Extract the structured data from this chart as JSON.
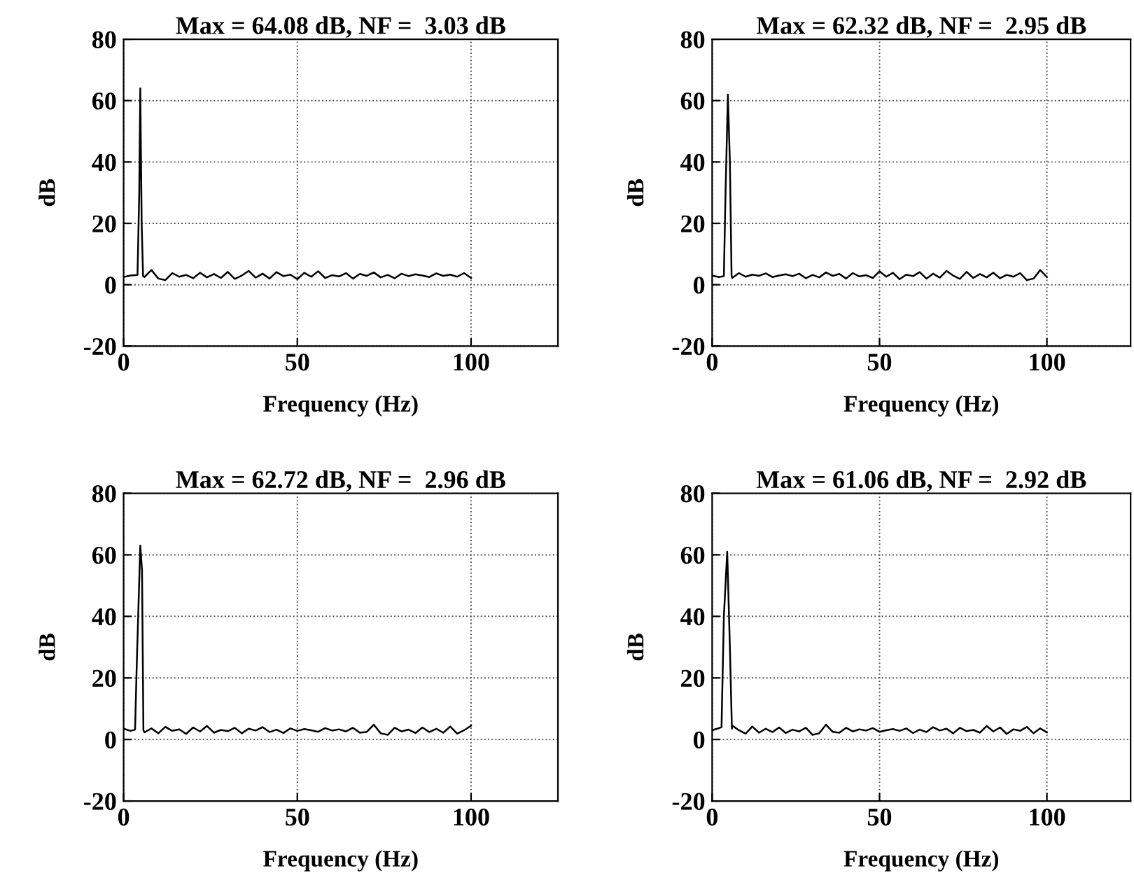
{
  "chart_data": [
    {
      "type": "line",
      "title": "Max = 64.08 dB, NF =  3.03 dB",
      "xlabel": "Frequency (Hz)",
      "ylabel": "dB",
      "xlim": [
        0,
        125
      ],
      "ylim": [
        -20,
        80
      ],
      "xticks": [
        0,
        50,
        100
      ],
      "yticks": [
        -20,
        0,
        20,
        40,
        60,
        80
      ],
      "grid": true,
      "series": [
        {
          "color": "#000000",
          "x": [
            0,
            2,
            4,
            4.5,
            4.8,
            5.2,
            5.6,
            6,
            8,
            10,
            12,
            14,
            16,
            18,
            20,
            22,
            24,
            26,
            28,
            30,
            32,
            34,
            36,
            38,
            40,
            42,
            44,
            46,
            48,
            50,
            52,
            54,
            56,
            58,
            60,
            62,
            64,
            66,
            68,
            70,
            72,
            74,
            76,
            78,
            80,
            82,
            84,
            86,
            88,
            90,
            92,
            94,
            96,
            98,
            100
          ],
          "values": [
            2.5,
            3.0,
            3.2,
            30,
            64,
            20,
            2.8,
            2.5,
            4.8,
            2.0,
            1.5,
            3.8,
            2.6,
            3.2,
            2.1,
            3.9,
            2.4,
            3.5,
            2.2,
            4.2,
            1.9,
            3.0,
            4.5,
            2.3,
            3.6,
            2.0,
            4.1,
            2.8,
            3.3,
            1.8,
            3.9,
            2.6,
            4.4,
            2.2,
            3.1,
            2.7,
            3.8,
            2.0,
            3.5,
            2.9,
            4.0,
            2.4,
            3.2,
            2.1,
            3.6,
            2.8,
            3.4,
            3.0,
            2.5,
            3.7,
            2.9,
            3.3,
            2.6,
            3.8,
            2.2
          ]
        }
      ]
    },
    {
      "type": "line",
      "title": "Max = 62.32 dB, NF =  2.95 dB",
      "xlabel": "Frequency (Hz)",
      "ylabel": "dB",
      "xlim": [
        0,
        125
      ],
      "ylim": [
        -20,
        80
      ],
      "xticks": [
        0,
        50,
        100
      ],
      "yticks": [
        -20,
        0,
        20,
        40,
        60,
        80
      ],
      "grid": true,
      "series": [
        {
          "color": "#000000",
          "x": [
            0,
            2,
            3.5,
            4.0,
            4.7,
            5.3,
            5.8,
            6,
            8,
            10,
            12,
            14,
            16,
            18,
            20,
            22,
            24,
            26,
            28,
            30,
            32,
            34,
            36,
            38,
            40,
            42,
            44,
            46,
            48,
            50,
            52,
            54,
            56,
            58,
            60,
            62,
            64,
            66,
            68,
            70,
            72,
            74,
            76,
            78,
            80,
            82,
            84,
            86,
            88,
            90,
            92,
            94,
            96,
            98,
            100
          ],
          "values": [
            3.0,
            2.5,
            2.8,
            30,
            62,
            40,
            3.0,
            2.2,
            3.8,
            2.6,
            3.3,
            2.9,
            3.7,
            2.5,
            3.0,
            3.4,
            2.8,
            3.6,
            2.1,
            3.2,
            2.4,
            4.0,
            2.9,
            3.5,
            2.0,
            3.8,
            2.7,
            3.1,
            2.2,
            4.4,
            2.6,
            3.9,
            1.8,
            3.3,
            2.8,
            4.1,
            2.0,
            3.6,
            2.3,
            4.5,
            3.0,
            1.9,
            4.2,
            2.2,
            3.5,
            2.4,
            3.9,
            2.1,
            3.2,
            2.6,
            3.8,
            1.5,
            2.0,
            4.8,
            2.5
          ]
        }
      ]
    },
    {
      "type": "line",
      "title": "Max = 62.72 dB, NF =  2.96 dB",
      "xlabel": "Frequency (Hz)",
      "ylabel": "dB",
      "xlim": [
        0,
        125
      ],
      "ylim": [
        -20,
        80
      ],
      "xticks": [
        0,
        50,
        100
      ],
      "yticks": [
        -20,
        0,
        20,
        40,
        60,
        80
      ],
      "grid": true,
      "series": [
        {
          "color": "#000000",
          "x": [
            0,
            2,
            3.3,
            3.8,
            4.8,
            5.3,
            5.7,
            6,
            8,
            10,
            12,
            14,
            16,
            18,
            20,
            22,
            24,
            26,
            28,
            30,
            32,
            34,
            36,
            38,
            40,
            42,
            44,
            46,
            48,
            50,
            52,
            54,
            56,
            58,
            60,
            62,
            64,
            66,
            68,
            70,
            72,
            74,
            76,
            78,
            80,
            82,
            84,
            86,
            88,
            90,
            92,
            94,
            96,
            98,
            100
          ],
          "values": [
            3.5,
            2.8,
            3.2,
            25,
            63,
            55,
            3.0,
            2.3,
            3.6,
            2.0,
            4.1,
            2.8,
            3.3,
            1.8,
            3.9,
            2.6,
            4.4,
            2.2,
            3.1,
            2.7,
            3.8,
            2.0,
            3.5,
            2.9,
            4.0,
            2.4,
            3.2,
            2.1,
            3.6,
            2.8,
            3.4,
            3.0,
            2.5,
            3.7,
            2.9,
            3.3,
            2.6,
            3.8,
            2.2,
            2.5,
            4.8,
            2.0,
            1.5,
            3.8,
            2.6,
            3.2,
            2.1,
            3.9,
            2.4,
            3.5,
            2.2,
            4.2,
            1.9,
            3.0,
            4.5
          ]
        }
      ]
    },
    {
      "type": "line",
      "title": "Max = 61.06 dB, NF =  2.92 dB",
      "xlabel": "Frequency (Hz)",
      "ylabel": "dB",
      "xlim": [
        0,
        125
      ],
      "ylim": [
        -20,
        80
      ],
      "xticks": [
        0,
        50,
        100
      ],
      "yticks": [
        -20,
        0,
        20,
        40,
        60,
        80
      ],
      "grid": true,
      "series": [
        {
          "color": "#000000",
          "x": [
            0,
            1.5,
            2.8,
            3.5,
            4.5,
            5.3,
            5.9,
            6,
            8,
            10,
            12,
            14,
            16,
            18,
            20,
            22,
            24,
            26,
            28,
            30,
            32,
            34,
            36,
            38,
            40,
            42,
            44,
            46,
            48,
            50,
            52,
            54,
            56,
            58,
            60,
            62,
            64,
            66,
            68,
            70,
            72,
            74,
            76,
            78,
            80,
            82,
            84,
            86,
            88,
            90,
            92,
            94,
            96,
            98,
            100
          ],
          "values": [
            3.0,
            3.5,
            4.0,
            40,
            61,
            30,
            3.5,
            4.5,
            3.0,
            1.9,
            4.2,
            2.2,
            3.5,
            2.4,
            3.9,
            2.1,
            3.2,
            2.6,
            3.8,
            1.5,
            2.0,
            4.8,
            2.5,
            2.2,
            3.8,
            2.6,
            3.3,
            2.9,
            3.7,
            2.5,
            3.0,
            3.4,
            2.8,
            3.6,
            2.1,
            3.2,
            2.4,
            4.0,
            2.9,
            3.5,
            2.0,
            3.8,
            2.7,
            3.1,
            2.2,
            4.4,
            2.6,
            3.9,
            1.8,
            3.3,
            2.8,
            4.1,
            2.0,
            3.6,
            2.3
          ]
        }
      ]
    }
  ]
}
